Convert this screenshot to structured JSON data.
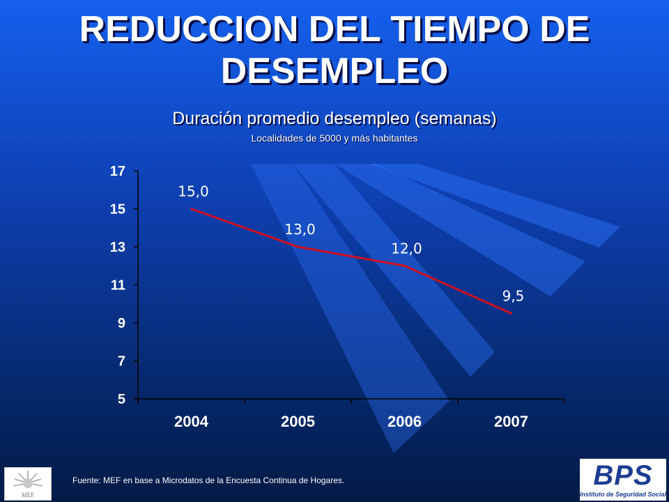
{
  "title": "REDUCCION DEL TIEMPO DE DESEMPLEO",
  "title_lines": [
    "REDUCCION DEL TIEMPO DE",
    "DESEMPLEO"
  ],
  "subtitle": "Duración promedio desempleo (semanas)",
  "subsubtitle": "Localidades de 5000 y más habitantes",
  "source": "Fuente: MEF en base a Microdatos de la Encuesta Continua de Hogares.",
  "logos": {
    "mef": "MEF",
    "bps_name": "BPS",
    "bps_sub": "Instituto de Seguridad Social"
  },
  "colors": {
    "background_top": "#1560ee",
    "background_bottom": "#031a45",
    "line": "#d01020",
    "text": "#ffffff"
  },
  "chart_data": {
    "type": "line",
    "categories": [
      "2004",
      "2005",
      "2006",
      "2007"
    ],
    "series": [
      {
        "values": [
          15.0,
          13.0,
          12.0,
          9.5
        ]
      }
    ],
    "data_labels": [
      "15,0",
      "13,0",
      "12,0",
      "9,5"
    ],
    "ylim": [
      5,
      17
    ],
    "yticks": [
      5,
      7,
      9,
      11,
      13,
      15,
      17
    ],
    "ytick_labels": [
      "5",
      "7",
      "9",
      "11",
      "13",
      "15",
      "17"
    ],
    "grid": false,
    "legend": "none",
    "xlabel": "",
    "ylabel": ""
  }
}
